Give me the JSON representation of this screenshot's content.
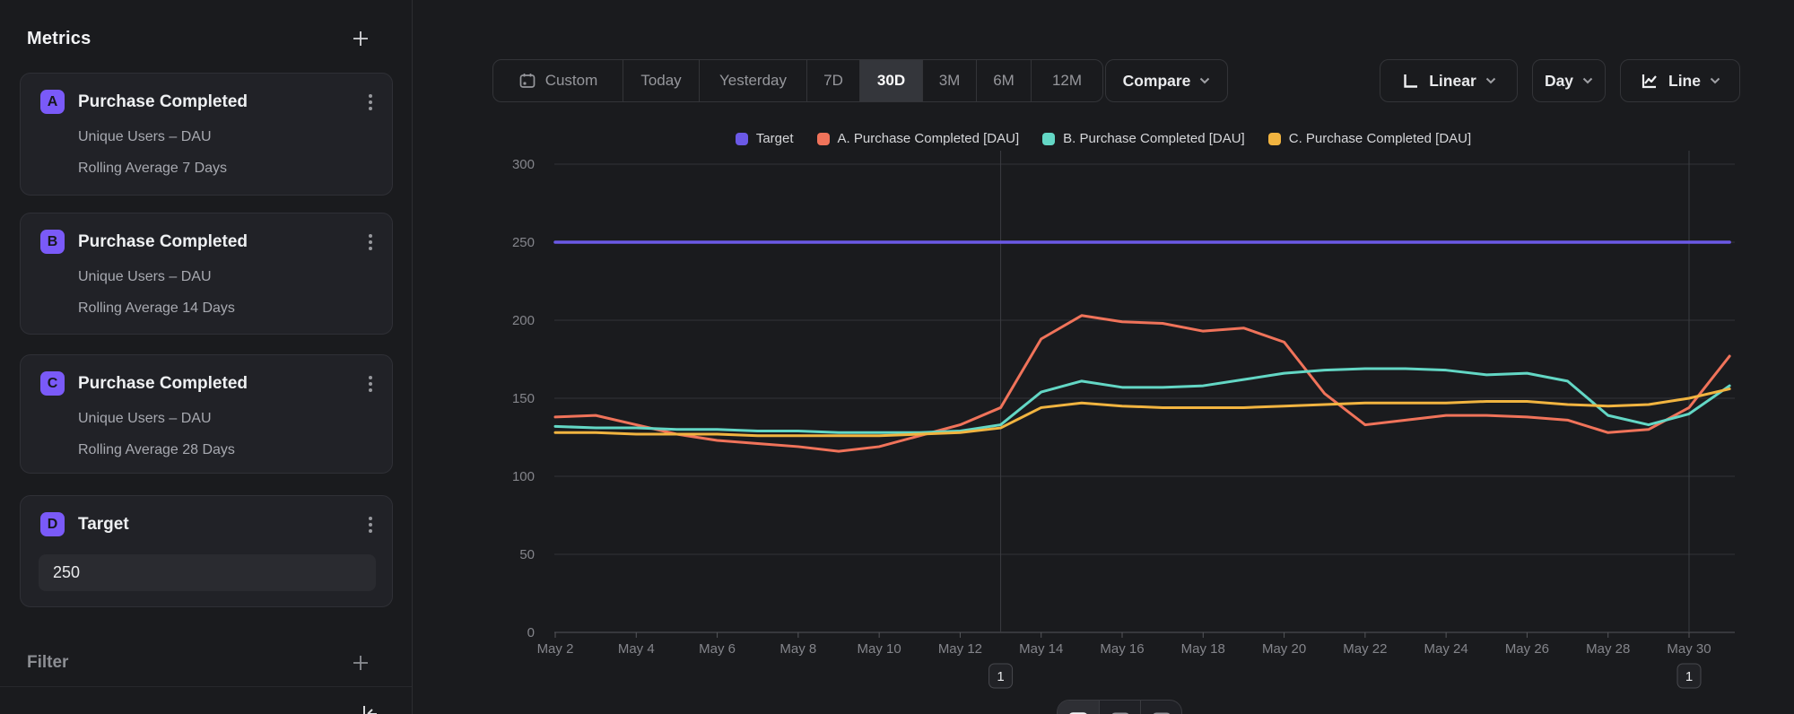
{
  "sidebar": {
    "title": "Metrics",
    "metrics": [
      {
        "badge": "A",
        "title": "Purchase Completed",
        "line1": "Unique Users – DAU",
        "line2": "Rolling Average 7 Days"
      },
      {
        "badge": "B",
        "title": "Purchase Completed",
        "line1": "Unique Users – DAU",
        "line2": "Rolling Average 14 Days"
      },
      {
        "badge": "C",
        "title": "Purchase Completed",
        "line1": "Unique Users – DAU",
        "line2": "Rolling Average 28 Days"
      },
      {
        "badge": "D",
        "title": "Target",
        "input_value": "250"
      }
    ],
    "filter_label": "Filter"
  },
  "toolbar": {
    "ranges": [
      "Custom",
      "Today",
      "Yesterday",
      "7D",
      "30D",
      "3M",
      "6M",
      "12M"
    ],
    "selected_range": "30D",
    "compare_label": "Compare",
    "scale_label": "Linear",
    "interval_label": "Day",
    "chart_type_label": "Line"
  },
  "annotations": [
    {
      "label": "1",
      "day_index": 11
    },
    {
      "label": "1",
      "day_index": 28
    }
  ],
  "chart_data": {
    "type": "line",
    "categories": [
      "May 2",
      "May 3",
      "May 4",
      "May 5",
      "May 6",
      "May 7",
      "May 8",
      "May 9",
      "May 10",
      "May 11",
      "May 12",
      "May 13",
      "May 14",
      "May 15",
      "May 16",
      "May 17",
      "May 18",
      "May 19",
      "May 20",
      "May 21",
      "May 22",
      "May 23",
      "May 24",
      "May 25",
      "May 26",
      "May 27",
      "May 28",
      "May 29",
      "May 30",
      "May 31"
    ],
    "x_tick_every": 2,
    "ylim": [
      0,
      300
    ],
    "yticks": [
      0,
      50,
      100,
      150,
      200,
      250,
      300
    ],
    "grid": true,
    "legend_position": "top",
    "series": [
      {
        "name": "Target",
        "color": "#6b59e6",
        "values": [
          250,
          250,
          250,
          250,
          250,
          250,
          250,
          250,
          250,
          250,
          250,
          250,
          250,
          250,
          250,
          250,
          250,
          250,
          250,
          250,
          250,
          250,
          250,
          250,
          250,
          250,
          250,
          250,
          250,
          250
        ]
      },
      {
        "name": "A. Purchase Completed [DAU]",
        "color": "#f0735a",
        "values": [
          138,
          139,
          133,
          127,
          123,
          121,
          119,
          116,
          119,
          126,
          133,
          144,
          188,
          203,
          199,
          198,
          193,
          195,
          186,
          153,
          133,
          136,
          139,
          139,
          138,
          136,
          128,
          130,
          144,
          177
        ]
      },
      {
        "name": "B. Purchase Completed [DAU]",
        "color": "#63d7c5",
        "values": [
          132,
          131,
          131,
          130,
          130,
          129,
          129,
          128,
          128,
          128,
          129,
          133,
          154,
          161,
          157,
          157,
          158,
          162,
          166,
          168,
          169,
          169,
          168,
          165,
          166,
          161,
          139,
          133,
          140,
          158
        ]
      },
      {
        "name": "C. Purchase Completed [DAU]",
        "color": "#f1b440",
        "values": [
          128,
          128,
          127,
          127,
          127,
          126,
          126,
          126,
          126,
          127,
          128,
          131,
          144,
          147,
          145,
          144,
          144,
          144,
          145,
          146,
          147,
          147,
          147,
          148,
          148,
          146,
          145,
          146,
          150,
          156
        ]
      }
    ]
  }
}
